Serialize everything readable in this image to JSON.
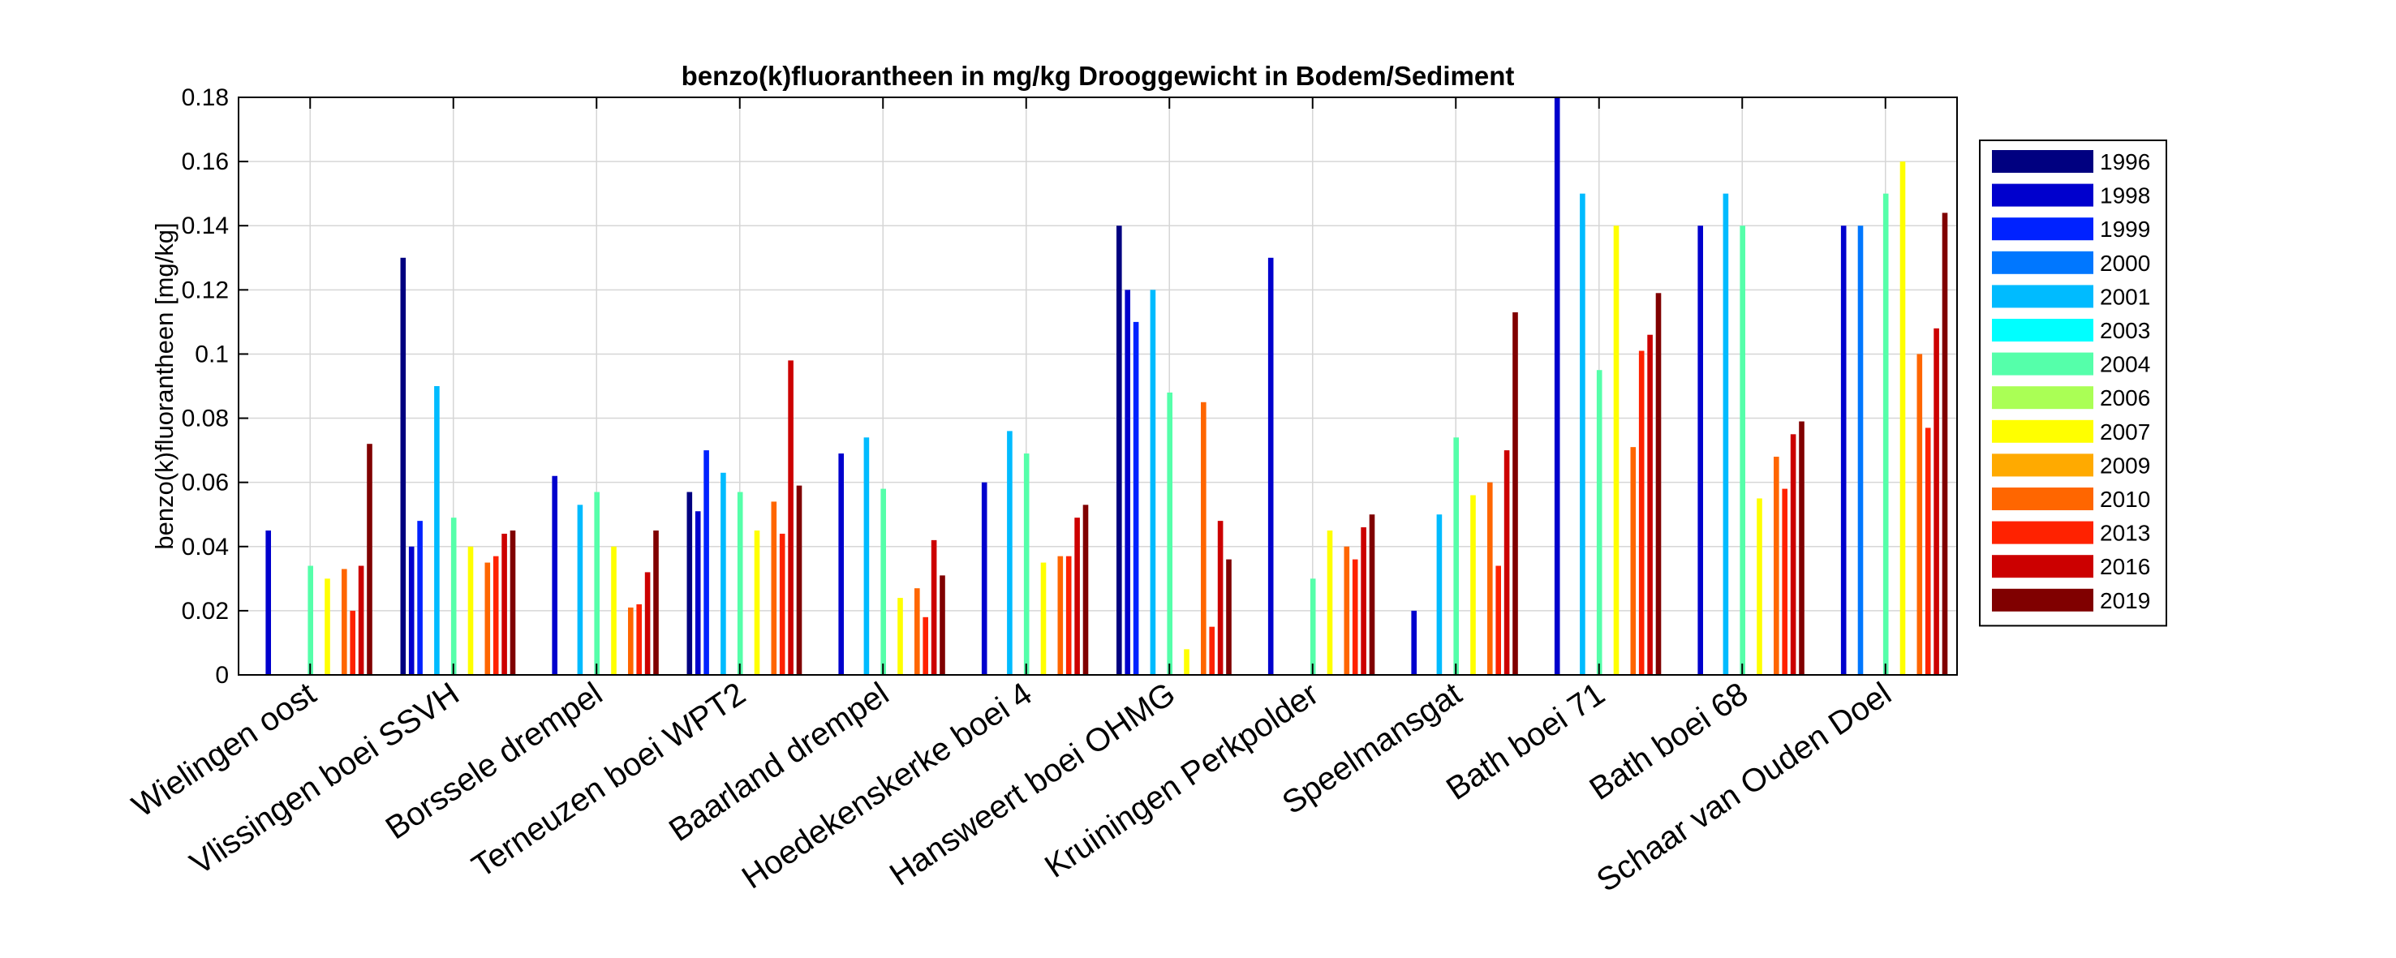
{
  "chart_data": {
    "type": "bar",
    "title": "benzo(k)fluorantheen in mg/kg Drooggewicht in Bodem/Sediment",
    "xlabel": "",
    "ylabel": "benzo(k)fluorantheen [mg/kg]",
    "ylim": [
      0,
      0.18
    ],
    "yticks": [
      "0",
      "0.02",
      "0.04",
      "0.06",
      "0.08",
      "0.1",
      "0.12",
      "0.14",
      "0.16",
      "0.18"
    ],
    "grid": true,
    "legend_position": "right",
    "categories": [
      "Wielingen oost",
      "Vlissingen boei SSVH",
      "Borssele drempel",
      "Terneuzen boei WPT2",
      "Baarland drempel",
      "Hoedekenskerke boei 4",
      "Hansweert boei OHMG",
      "Kruiningen Perkpolder",
      "Speelmansgat",
      "Bath boei 71",
      "Bath boei 68",
      "Schaar van Ouden Doel"
    ],
    "series": [
      {
        "name": "1996",
        "color": "#000080",
        "values": [
          null,
          0.13,
          null,
          0.057,
          null,
          null,
          0.14,
          null,
          null,
          null,
          null,
          null
        ]
      },
      {
        "name": "1998",
        "color": "#0000CD",
        "values": [
          0.045,
          0.04,
          0.062,
          0.051,
          0.069,
          0.06,
          0.12,
          0.13,
          0.02,
          0.18,
          0.14,
          0.14
        ]
      },
      {
        "name": "1999",
        "color": "#0022FF",
        "values": [
          null,
          0.048,
          null,
          0.07,
          null,
          null,
          0.11,
          null,
          null,
          null,
          null,
          null
        ]
      },
      {
        "name": "2000",
        "color": "#0077FF",
        "values": [
          null,
          null,
          null,
          null,
          null,
          null,
          null,
          null,
          null,
          null,
          null,
          0.14
        ]
      },
      {
        "name": "2001",
        "color": "#00BBFF",
        "values": [
          null,
          0.09,
          0.053,
          0.063,
          0.074,
          0.076,
          0.12,
          null,
          0.05,
          0.15,
          0.15,
          null
        ]
      },
      {
        "name": "2003",
        "color": "#00FFFF",
        "values": [
          null,
          null,
          null,
          null,
          null,
          null,
          null,
          null,
          null,
          null,
          null,
          null
        ]
      },
      {
        "name": "2004",
        "color": "#55FFAA",
        "values": [
          0.034,
          0.049,
          0.057,
          0.057,
          0.058,
          0.069,
          0.088,
          0.03,
          0.074,
          0.095,
          0.14,
          0.15
        ]
      },
      {
        "name": "2006",
        "color": "#AAFF55",
        "values": [
          null,
          null,
          null,
          null,
          null,
          null,
          null,
          null,
          null,
          null,
          null,
          null
        ]
      },
      {
        "name": "2007",
        "color": "#FFFF00",
        "values": [
          0.03,
          0.04,
          0.04,
          0.045,
          0.024,
          0.035,
          0.008,
          0.045,
          0.056,
          0.14,
          0.055,
          0.16
        ]
      },
      {
        "name": "2009",
        "color": "#FFAA00",
        "values": [
          null,
          null,
          null,
          null,
          null,
          null,
          null,
          null,
          null,
          null,
          null,
          null
        ]
      },
      {
        "name": "2010",
        "color": "#FF6600",
        "values": [
          0.033,
          0.035,
          0.021,
          0.054,
          0.027,
          0.037,
          0.085,
          0.04,
          0.06,
          0.071,
          0.068,
          0.1
        ]
      },
      {
        "name": "2013",
        "color": "#FF2200",
        "values": [
          0.02,
          0.037,
          0.022,
          0.044,
          0.018,
          0.037,
          0.015,
          0.036,
          0.034,
          0.101,
          0.058,
          0.077
        ]
      },
      {
        "name": "2016",
        "color": "#CC0000",
        "values": [
          0.034,
          0.044,
          0.032,
          0.098,
          0.042,
          0.049,
          0.048,
          0.046,
          0.07,
          0.106,
          0.075,
          0.108
        ]
      },
      {
        "name": "2019",
        "color": "#800000",
        "values": [
          0.072,
          0.045,
          0.045,
          0.059,
          0.031,
          0.053,
          0.036,
          0.05,
          0.113,
          0.119,
          0.079,
          0.144
        ]
      }
    ]
  }
}
